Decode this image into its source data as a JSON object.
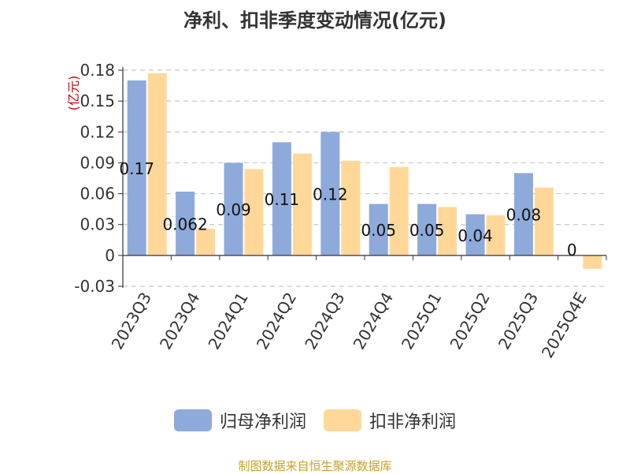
{
  "title": "净利、扣非季度变动情况(亿元)",
  "source": "制图数据来自恒生聚源数据库",
  "colors": {
    "series_1": "#8eaadb",
    "series_2": "#ffd899",
    "ylabel": "#cc0000",
    "source": "#c9a227"
  },
  "chart_data": {
    "type": "bar",
    "title": "净利、扣非季度变动情况(亿元)",
    "ylabel": "(亿元)",
    "xlabel": "",
    "categories": [
      "2023Q3",
      "2023Q4",
      "2024Q1",
      "2024Q2",
      "2024Q3",
      "2024Q4",
      "2025Q1",
      "2025Q2",
      "2025Q3",
      "2025Q4E"
    ],
    "series": [
      {
        "name": "归母净利润",
        "values": [
          0.17,
          0.062,
          0.09,
          0.11,
          0.12,
          0.05,
          0.05,
          0.04,
          0.08,
          0
        ],
        "labels": [
          "0.17",
          "0.062",
          "0.09",
          "0.11",
          "0.12",
          "0.05",
          "0.05",
          "0.04",
          "0.08",
          "0"
        ]
      },
      {
        "name": "扣非净利润",
        "values": [
          0.177,
          0.026,
          0.084,
          0.099,
          0.092,
          0.086,
          0.047,
          0.039,
          0.066,
          -0.013
        ]
      }
    ],
    "yticks": [
      "0.18",
      "0.15",
      "0.12",
      "0.09",
      "0.06",
      "0.03",
      "0",
      "-0.03"
    ],
    "ylim": [
      -0.03,
      0.18
    ],
    "grid": true,
    "legend_position": "bottom"
  }
}
